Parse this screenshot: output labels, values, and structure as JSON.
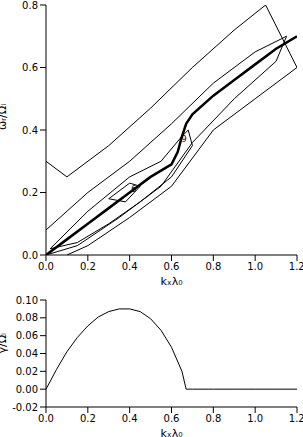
{
  "chart_data": [
    {
      "type": "line",
      "x_label": "kₓλ₀",
      "y_label": "ωᵣ/Ωᵢ",
      "xlim": [
        0,
        1.2
      ],
      "xticks": [
        {
          "value": 0,
          "label": "0.0"
        },
        {
          "value": 0.2,
          "label": "0.2"
        },
        {
          "value": 0.4,
          "label": "0.4"
        },
        {
          "value": 0.6,
          "label": "0.6"
        },
        {
          "value": 0.8,
          "label": "0.8"
        },
        {
          "value": 1.0,
          "label": "1.0"
        },
        {
          "value": 1.2,
          "label": "1.2"
        }
      ],
      "ylim": [
        0,
        0.8
      ],
      "yticks": [
        {
          "value": 0,
          "label": "0.0"
        },
        {
          "value": 0.2,
          "label": "0.2"
        },
        {
          "value": 0.4,
          "label": "0.4"
        },
        {
          "value": 0.6,
          "label": "0.6"
        },
        {
          "value": 0.8,
          "label": "0.8"
        }
      ],
      "annotations": [
        {
          "text": "9",
          "x": 0.66,
          "y": 0.37
        },
        {
          "text": "6",
          "x": 0.42,
          "y": 0.21
        }
      ],
      "series": [
        {
          "type": "contour",
          "color": "#000000",
          "x": [
            0,
            0.1,
            0.3,
            0.5,
            0.7,
            0.9,
            1.05,
            1.2,
            1.0,
            0.8,
            0.6,
            0.4,
            0.2,
            0.1
          ],
          "values": [
            0.3,
            0.25,
            0.35,
            0.47,
            0.6,
            0.72,
            0.8,
            0.6,
            0.5,
            0.4,
            0.22,
            0.12,
            0.03,
            0
          ]
        },
        {
          "type": "contour",
          "color": "#000000",
          "x": [
            0,
            0.2,
            0.4,
            0.6,
            0.8,
            1.0,
            1.15,
            1.1,
            0.9,
            0.7,
            0.55,
            0.35,
            0.15,
            0
          ],
          "values": [
            0.08,
            0.2,
            0.3,
            0.42,
            0.55,
            0.65,
            0.7,
            0.62,
            0.5,
            0.36,
            0.22,
            0.12,
            0.03,
            0
          ]
        },
        {
          "type": "contour",
          "color": "#000000",
          "x": [
            0.02,
            0.2,
            0.4,
            0.55,
            0.65,
            0.68,
            0.7,
            0.6,
            0.45,
            0.3,
            0.15,
            0.02
          ],
          "values": [
            0.02,
            0.14,
            0.25,
            0.3,
            0.38,
            0.4,
            0.35,
            0.25,
            0.17,
            0.1,
            0.04,
            0.02
          ]
        },
        {
          "type": "contour",
          "color": "#000000",
          "x": [
            0.3,
            0.4,
            0.45,
            0.38,
            0.3
          ],
          "values": [
            0.18,
            0.23,
            0.22,
            0.17,
            0.18
          ]
        },
        {
          "type": "line",
          "color": "#000000",
          "x": [
            0,
            0.1,
            0.2,
            0.3,
            0.4,
            0.5,
            0.55,
            0.6,
            0.63,
            0.65,
            0.67,
            0.7,
            0.8,
            0.9,
            1.0,
            1.1,
            1.2
          ],
          "values": [
            0,
            0.05,
            0.1,
            0.15,
            0.2,
            0.25,
            0.27,
            0.29,
            0.33,
            0.38,
            0.42,
            0.45,
            0.51,
            0.56,
            0.61,
            0.66,
            0.7
          ]
        }
      ]
    },
    {
      "type": "line",
      "x_label": "kₓλ₀",
      "y_label": "γ/Ωᵢ",
      "xlim": [
        0,
        1.2
      ],
      "xticks": [
        {
          "value": 0,
          "label": "0.0"
        },
        {
          "value": 0.2,
          "label": "0.2"
        },
        {
          "value": 0.4,
          "label": "0.4"
        },
        {
          "value": 0.6,
          "label": "0.6"
        },
        {
          "value": 0.8,
          "label": "0.8"
        },
        {
          "value": 1.0,
          "label": "1.0"
        },
        {
          "value": 1.2,
          "label": "1.2"
        }
      ],
      "ylim": [
        -0.02,
        0.1
      ],
      "yticks": [
        {
          "value": -0.02,
          "label": "-0.02"
        },
        {
          "value": 0,
          "label": "0.00"
        },
        {
          "value": 0.02,
          "label": "0.02"
        },
        {
          "value": 0.04,
          "label": "0.04"
        },
        {
          "value": 0.06,
          "label": "0.06"
        },
        {
          "value": 0.08,
          "label": "0.08"
        },
        {
          "value": 0.1,
          "label": "0.10"
        }
      ],
      "series": [
        {
          "type": "line",
          "color": "#000000",
          "x": [
            0,
            0.05,
            0.1,
            0.15,
            0.2,
            0.25,
            0.3,
            0.35,
            0.4,
            0.45,
            0.5,
            0.55,
            0.6,
            0.65,
            0.67,
            0.7,
            0.8,
            0.9,
            1.0,
            1.1,
            1.2
          ],
          "values": [
            0,
            0.022,
            0.042,
            0.058,
            0.071,
            0.081,
            0.087,
            0.09,
            0.09,
            0.087,
            0.079,
            0.066,
            0.047,
            0.02,
            0,
            0,
            0,
            0,
            0,
            0,
            0
          ]
        }
      ]
    }
  ]
}
